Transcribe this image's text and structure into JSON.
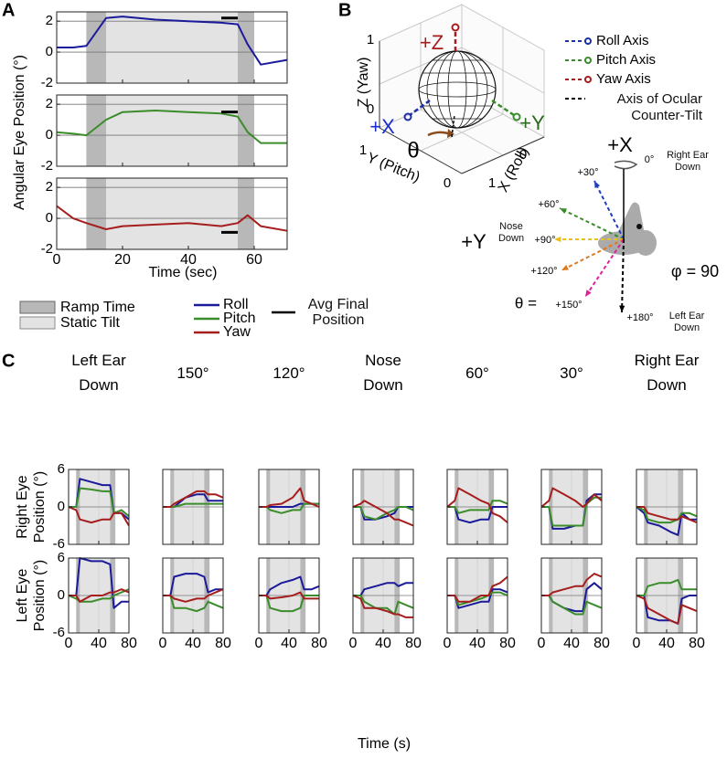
{
  "panel_labels": [
    "A",
    "B",
    "C"
  ],
  "chart_data": [
    {
      "type": "line",
      "y_label": "Angular Eye Position (°)",
      "x_label": "Time (sec)",
      "x": [
        0,
        5,
        9,
        15,
        20,
        30,
        40,
        50,
        55,
        58,
        62,
        70
      ],
      "xlim": [
        0,
        70
      ],
      "xticks": [
        0,
        20,
        40,
        60
      ],
      "ylim": [
        -2,
        2.6
      ],
      "yticks": [
        -2,
        0,
        2
      ],
      "grid": "y",
      "ramp_periods": [
        [
          9,
          15
        ],
        [
          55,
          60
        ]
      ],
      "static_period": [
        15,
        55
      ],
      "avg_window": [
        50,
        55
      ],
      "legend_labels": [
        "Ramp Time",
        "Static Tilt",
        "Avg Final Position"
      ],
      "subplots": [
        {
          "series": [
            {
              "name": "Roll",
              "color": "#1a1a9a",
              "values": [
                0.3,
                0.3,
                0.4,
                2.2,
                2.3,
                2.1,
                2.0,
                1.9,
                1.8,
                0.5,
                -0.8,
                -0.5
              ]
            }
          ],
          "avg_final": 2.2
        },
        {
          "series": [
            {
              "name": "Pitch",
              "color": "#3b8c2b",
              "values": [
                0.2,
                0.1,
                0,
                1,
                1.5,
                1.6,
                1.5,
                1.4,
                1.2,
                0.2,
                -0.5,
                -0.5
              ]
            }
          ],
          "avg_final": 1.5
        },
        {
          "series": [
            {
              "name": "Yaw",
              "color": "#a51d1d",
              "values": [
                0.8,
                0,
                -0.3,
                -0.7,
                -0.5,
                -0.4,
                -0.3,
                -0.5,
                -0.3,
                0.2,
                -0.5,
                -0.8
              ]
            }
          ],
          "avg_final": -0.9
        }
      ]
    },
    {
      "type": "line",
      "column_titles": [
        "Left Ear Down",
        "150°",
        "120°",
        "Nose Down",
        "60°",
        "30°",
        "Right Ear Down"
      ],
      "row_labels": [
        "Right Eye Position (°)",
        "Left Eye Position (°)"
      ],
      "x_label": "Time (s)",
      "x": [
        0,
        10,
        15,
        30,
        45,
        55,
        60,
        70,
        80
      ],
      "xlim": [
        0,
        80
      ],
      "xticks": [
        0,
        40,
        80
      ],
      "ylim": [
        -6,
        6
      ],
      "yticks": [
        -6,
        0,
        6
      ],
      "grid": "both",
      "ramp_periods": [
        [
          10,
          15
        ],
        [
          55,
          62
        ]
      ],
      "static_period": [
        15,
        55
      ],
      "rows": [
        [
          {
            "series": [
              {
                "color": "#1a1a9a",
                "values": [
                  0,
                  0,
                  4.5,
                  4,
                  3.5,
                  3.5,
                  -1,
                  -1,
                  -2
                ]
              },
              {
                "color": "#3b8c2b",
                "values": [
                  0,
                  0,
                  3,
                  2.8,
                  2.5,
                  2.5,
                  -1,
                  -0.5,
                  -1.5
                ]
              },
              {
                "color": "#a51d1d",
                "values": [
                  0,
                  -0.5,
                  -2,
                  -2.5,
                  -2,
                  -2,
                  -1,
                  -1,
                  -3
                ]
              }
            ]
          },
          {
            "series": [
              {
                "color": "#1a1a9a",
                "values": [
                  0,
                  0,
                  0,
                  1.5,
                  2,
                  2,
                  1,
                  1,
                  1
                ]
              },
              {
                "color": "#3b8c2b",
                "values": [
                  0,
                  0,
                  0,
                  0.5,
                  0.5,
                  0.5,
                  0.5,
                  0.5,
                  0.5
                ]
              },
              {
                "color": "#a51d1d",
                "values": [
                  0,
                  0,
                  0.5,
                  1.5,
                  2.5,
                  2.5,
                  2,
                  2,
                  1.5
                ]
              }
            ]
          },
          {
            "series": [
              {
                "color": "#1a1a9a",
                "values": [
                  0,
                  0,
                  0,
                  0,
                  0,
                  0.5,
                  0.5,
                  0.5,
                  0.5
                ]
              },
              {
                "color": "#3b8c2b",
                "values": [
                  0,
                  0,
                  -0.5,
                  -1,
                  -0.5,
                  -0.5,
                  0.5,
                  0.5,
                  0.5
                ]
              },
              {
                "color": "#a51d1d",
                "values": [
                  0,
                  0,
                  0.3,
                  0.5,
                  1.5,
                  3,
                  1,
                  0.5,
                  0
                ]
              }
            ]
          },
          {
            "series": [
              {
                "color": "#1a1a9a",
                "values": [
                  0,
                  0,
                  -2,
                  -2,
                  -1.5,
                  -1,
                  0,
                  0,
                  0
                ]
              },
              {
                "color": "#3b8c2b",
                "values": [
                  0,
                  0,
                  -1.5,
                  -2,
                  -1,
                  -0.5,
                  0,
                  0,
                  -0.5
                ]
              },
              {
                "color": "#a51d1d",
                "values": [
                  0,
                  0.5,
                  1,
                  0,
                  -1,
                  -2,
                  -2,
                  -2.5,
                  -3
                ]
              }
            ]
          },
          {
            "series": [
              {
                "color": "#1a1a9a",
                "values": [
                  0,
                  0,
                  -2,
                  -2.5,
                  -2,
                  -2,
                  0,
                  0,
                  0
                ]
              },
              {
                "color": "#3b8c2b",
                "values": [
                  0,
                  0,
                  -1,
                  -0.5,
                  -0.5,
                  -0.5,
                  1,
                  1,
                  0.5
                ]
              },
              {
                "color": "#a51d1d",
                "values": [
                  0,
                  1,
                  3,
                  2,
                  1,
                  0.5,
                  -1,
                  -1.5,
                  -2.5
                ]
              }
            ]
          },
          {
            "series": [
              {
                "color": "#1a1a9a",
                "values": [
                  0,
                  0,
                  -3.5,
                  -3.5,
                  -3,
                  -3,
                  1,
                  2,
                  2
                ]
              },
              {
                "color": "#3b8c2b",
                "values": [
                  0,
                  0,
                  -3,
                  -3,
                  -3,
                  -3,
                  0.5,
                  1.5,
                  1.5
                ]
              },
              {
                "color": "#a51d1d",
                "values": [
                  0,
                  1,
                  3,
                  2,
                  1,
                  0,
                  0.5,
                  2,
                  1
                ]
              }
            ]
          },
          {
            "series": [
              {
                "color": "#1a1a9a",
                "values": [
                  0,
                  -1,
                  -2.5,
                  -3,
                  -4,
                  -4.5,
                  -1,
                  -2,
                  -2
                ]
              },
              {
                "color": "#3b8c2b",
                "values": [
                  0,
                  -0.5,
                  -2,
                  -2.5,
                  -2.5,
                  -2,
                  -1,
                  -1,
                  -1.5
                ]
              },
              {
                "color": "#a51d1d",
                "values": [
                  0,
                  0,
                  -1,
                  -1.5,
                  -2,
                  -2,
                  -1.5,
                  -2,
                  -2.5
                ]
              }
            ]
          }
        ],
        [
          {
            "series": [
              {
                "color": "#1a1a9a",
                "values": [
                  0,
                  0,
                  6,
                  5.5,
                  5.5,
                  5,
                  -2,
                  -1,
                  -1
                ]
              },
              {
                "color": "#3b8c2b",
                "values": [
                  0,
                  -0.5,
                  -1,
                  -1,
                  -0.5,
                  -0.5,
                  0,
                  0.5,
                  1
                ]
              },
              {
                "color": "#a51d1d",
                "values": [
                  0,
                  0,
                  -1,
                  0,
                  0,
                  0.5,
                  0.5,
                  1,
                  0.5
                ]
              }
            ]
          },
          {
            "series": [
              {
                "color": "#1a1a9a",
                "values": [
                  0,
                  0,
                  3,
                  3.5,
                  3.5,
                  3,
                  0.5,
                  1,
                  1
                ]
              },
              {
                "color": "#3b8c2b",
                "values": [
                  0,
                  0,
                  -2,
                  -2,
                  -2.5,
                  -2,
                  -1,
                  -1.5,
                  -2
                ]
              },
              {
                "color": "#a51d1d",
                "values": [
                  0,
                  0,
                  -0.5,
                  -1,
                  -0.5,
                  -0.5,
                  0,
                  0.5,
                  1
                ]
              }
            ]
          },
          {
            "series": [
              {
                "color": "#1a1a9a",
                "values": [
                  0,
                  0,
                  1,
                  2,
                  2.5,
                  3,
                  1,
                  1,
                  1.5
                ]
              },
              {
                "color": "#3b8c2b",
                "values": [
                  0,
                  0,
                  -2,
                  -2.5,
                  -2.5,
                  -2,
                  0,
                  0,
                  0
                ]
              },
              {
                "color": "#a51d1d",
                "values": [
                  0,
                  0,
                  -0.5,
                  -0.3,
                  0,
                  0.5,
                  -0.5,
                  -0.5,
                  -0.5
                ]
              }
            ]
          },
          {
            "series": [
              {
                "color": "#1a1a9a",
                "values": [
                  0,
                  0,
                  1,
                  1.5,
                  2,
                  2,
                  1.5,
                  2,
                  2
                ]
              },
              {
                "color": "#3b8c2b",
                "values": [
                  0,
                  0,
                  -1,
                  -2,
                  -2,
                  -3,
                  -1,
                  -1.5,
                  -2
                ]
              },
              {
                "color": "#a51d1d",
                "values": [
                  0,
                  -0.5,
                  -2,
                  -2,
                  -2.5,
                  -3,
                  -3,
                  -3.5,
                  -3.5
                ]
              }
            ]
          },
          {
            "series": [
              {
                "color": "#1a1a9a",
                "values": [
                  0,
                  0,
                  -2,
                  -1.5,
                  -1,
                  -1,
                  1,
                  1,
                  0.5
                ]
              },
              {
                "color": "#3b8c2b",
                "values": [
                  0,
                  0,
                  -1.5,
                  -1,
                  -0.5,
                  0,
                  0.5,
                  0.5,
                  0
                ]
              },
              {
                "color": "#a51d1d",
                "values": [
                  0,
                  0,
                  -1,
                  -1,
                  0,
                  0,
                  1.5,
                  2,
                  3
                ]
              }
            ]
          },
          {
            "series": [
              {
                "color": "#1a1a9a",
                "values": [
                  0,
                  0,
                  -1,
                  -2,
                  -2.5,
                  -2.5,
                  1,
                  2,
                  1
                ]
              },
              {
                "color": "#3b8c2b",
                "values": [
                  0,
                  0,
                  -1,
                  -2,
                  -3,
                  -3,
                  -1,
                  -1.5,
                  -2
                ]
              },
              {
                "color": "#a51d1d",
                "values": [
                  0,
                  0,
                  0.5,
                  1,
                  1.5,
                  1.5,
                  2.5,
                  3.5,
                  3
                ]
              }
            ]
          },
          {
            "series": [
              {
                "color": "#1a1a9a",
                "values": [
                  0,
                  0,
                  -3.5,
                  -4,
                  -4,
                  -4.5,
                  -0.5,
                  0,
                  0
                ]
              },
              {
                "color": "#3b8c2b",
                "values": [
                  0,
                  0,
                  1.5,
                  2,
                  2,
                  2.5,
                  1,
                  1,
                  1
                ]
              },
              {
                "color": "#a51d1d",
                "values": [
                  0,
                  -0.5,
                  -2,
                  -3,
                  -4,
                  -4.5,
                  -1.5,
                  -2,
                  -2.5
                ]
              }
            ]
          }
        ]
      ]
    }
  ],
  "diagram": {
    "cube": {
      "z_label": "Z (Yaw)",
      "y_label": "Y (Pitch)",
      "x_label": "X (Roll)",
      "z_ticks": [
        0,
        1
      ],
      "y_ticks": [
        1,
        0
      ],
      "x_ticks": [
        0,
        1
      ]
    },
    "axis_labels": [
      "+Z",
      "+X",
      "+Y",
      "θ"
    ],
    "legend": [
      {
        "label": "Roll Axis",
        "color": "#1a2fa8"
      },
      {
        "label": "Pitch Axis",
        "color": "#3b8c2b"
      },
      {
        "label": "Yaw Axis",
        "color": "#a51d1d"
      },
      {
        "label": "Axis of Ocular Counter-Tilt",
        "color": "#000000"
      }
    ],
    "head": {
      "x_label": "+X",
      "y_label": "+Y",
      "right_ear": "Right Ear Down",
      "left_ear": "Left Ear Down",
      "nose": "Nose Down",
      "theta_label": "θ =",
      "phi_label": "φ = 90",
      "angles": [
        {
          "label": "0°",
          "color": "#000000"
        },
        {
          "label": "+30°",
          "color": "#1a3fbf"
        },
        {
          "label": "+60°",
          "color": "#3c8a2a"
        },
        {
          "label": "+90°",
          "color": "#e8c020"
        },
        {
          "label": "+120°",
          "color": "#e07a20"
        },
        {
          "label": "+150°",
          "color": "#e0209a"
        },
        {
          "label": "+180°",
          "color": "#000000"
        }
      ]
    }
  }
}
